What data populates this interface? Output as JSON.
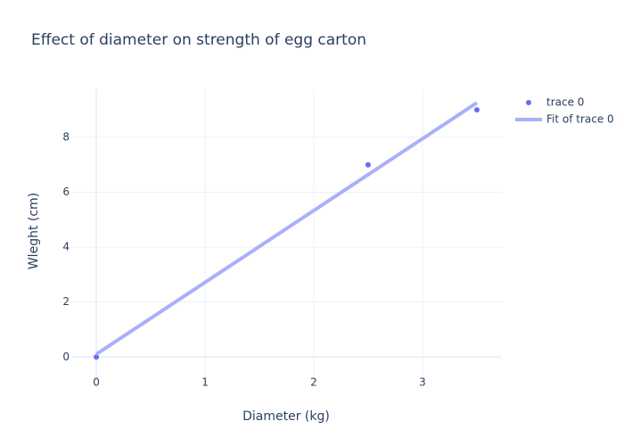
{
  "chart_data": {
    "type": "scatter",
    "title": "Effect of diameter on strength of egg carton",
    "x_label": "Diameter (kg)",
    "y_label": "Wleght (cm)",
    "series": [
      {
        "name": "trace 0",
        "color": "#636efa",
        "mode": "markers",
        "x": [
          0,
          2.5,
          3.5
        ],
        "values": [
          0,
          7,
          9
        ]
      },
      {
        "name": "Fit of trace 0",
        "color": "#aab0f7",
        "mode": "lines",
        "x": [
          0,
          3.5
        ],
        "values": [
          0.103,
          9.256
        ]
      }
    ],
    "xlim": [
      -0.23,
      3.73
    ],
    "ylim": [
      -0.9,
      9.75
    ],
    "xticks": [
      0,
      1,
      2,
      3
    ],
    "yticks": [
      0,
      2,
      4,
      6,
      8
    ],
    "grid": true
  }
}
